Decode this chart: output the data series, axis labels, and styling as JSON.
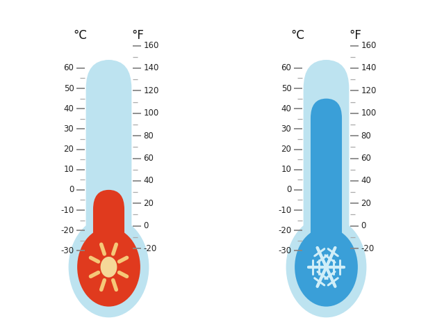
{
  "bg_color": "#ffffff",
  "tube_light_color": "#bde3f0",
  "tube_bg_color": "#9fd4e8",
  "tube_inner_bg_hot": "#bde3f0",
  "tube_inner_bg_cold": "#bde3f0",
  "hot_fill_color": "#e03a1e",
  "cold_fill_color": "#3a9fd8",
  "hot_bulb_color": "#e03a1e",
  "cold_bulb_color": "#3a9fd8",
  "celsius_label": "°C",
  "fahrenheit_label": "°F",
  "celsius_ticks": [
    -30,
    -20,
    -10,
    0,
    10,
    20,
    30,
    40,
    50,
    60
  ],
  "fahrenheit_ticks": [
    -20,
    0,
    20,
    40,
    60,
    80,
    100,
    120,
    140,
    160
  ],
  "hot_level_c": 0,
  "cold_level_c": 45,
  "tick_fontsize": 8.5,
  "title_fontsize": 12,
  "sun_ray_color": "#f5c878",
  "sun_center_color": "#f5d898",
  "snowflake_color": "#d0eef8"
}
